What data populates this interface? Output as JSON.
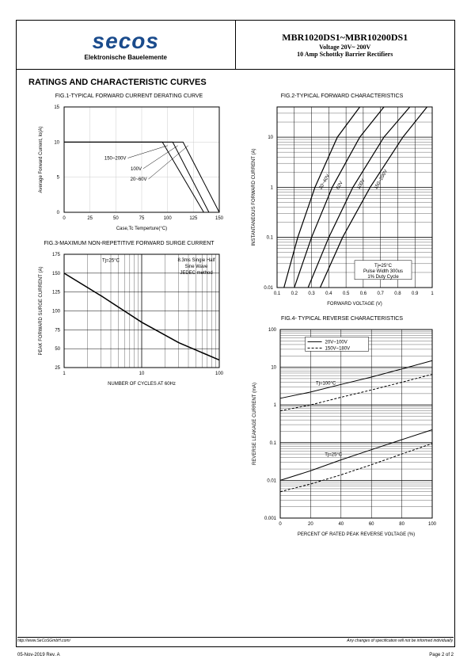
{
  "header": {
    "logo_text": "secos",
    "logo_subtitle": "Elektronische Bauelemente",
    "title_main": "MBR1020DS1~MBR10200DS1",
    "title_sub1": "Voltage 20V~ 200V",
    "title_sub2": "10 Amp Schottky Barrier Rectifiers"
  },
  "section_title": "RATINGS AND CHARACTERISTIC CURVES",
  "fig1": {
    "title": "FIG.1-TYPICAL FORWARD CURRENT DERATING CURVE",
    "xlabel": "Case,Tc Temperture(°C)",
    "ylabel": "Average Forward Current, Io(A)",
    "xlim": [
      0,
      150
    ],
    "ylim": [
      0,
      15
    ],
    "xticks": [
      0,
      25,
      50,
      75,
      100,
      125,
      150
    ],
    "yticks": [
      0,
      5,
      10,
      15
    ],
    "lines": [
      {
        "label": "150~200V",
        "label_pos": [
          60,
          7.5
        ],
        "points": [
          [
            0,
            10
          ],
          [
            95,
            10
          ],
          [
            135,
            0
          ]
        ]
      },
      {
        "label": "100V",
        "label_pos": [
          75,
          6
        ],
        "points": [
          [
            0,
            10
          ],
          [
            105,
            10
          ],
          [
            140,
            0
          ]
        ]
      },
      {
        "label": "20~60V",
        "label_pos": [
          80,
          4.5
        ],
        "points": [
          [
            0,
            10
          ],
          [
            115,
            10
          ],
          [
            150,
            0
          ]
        ]
      }
    ],
    "grid_color": "#cccccc",
    "line_color": "#000000",
    "border_color": "#000000"
  },
  "fig2": {
    "title": "FIG.2-TYPICAL FORWARD CHARACTERISTICS",
    "xlabel": "FORWARD VOLTAGE (V)",
    "ylabel": "INSTANTANEOUS FORWARD CURRENT (A)",
    "xlim": [
      0.1,
      1.0
    ],
    "ylim": [
      0.01,
      40
    ],
    "xticks": [
      0.1,
      0.2,
      0.3,
      0.4,
      0.5,
      0.6,
      0.7,
      0.8,
      0.9,
      1.0
    ],
    "yticks_log": [
      0.01,
      0.1,
      1,
      10
    ],
    "curves": [
      {
        "label": "20~40V",
        "points": [
          [
            0.14,
            0.01
          ],
          [
            0.22,
            0.1
          ],
          [
            0.32,
            1
          ],
          [
            0.45,
            10
          ],
          [
            0.58,
            40
          ]
        ]
      },
      {
        "label": "60V",
        "points": [
          [
            0.2,
            0.01
          ],
          [
            0.3,
            0.1
          ],
          [
            0.42,
            1
          ],
          [
            0.58,
            10
          ],
          [
            0.72,
            40
          ]
        ]
      },
      {
        "label": "100V",
        "points": [
          [
            0.28,
            0.01
          ],
          [
            0.4,
            0.1
          ],
          [
            0.54,
            1
          ],
          [
            0.72,
            10
          ],
          [
            0.87,
            40
          ]
        ]
      },
      {
        "label": "150~200V",
        "points": [
          [
            0.35,
            0.01
          ],
          [
            0.48,
            0.1
          ],
          [
            0.64,
            1
          ],
          [
            0.83,
            10
          ],
          [
            0.97,
            40
          ]
        ]
      }
    ],
    "annot_lines": [
      "Tj=25°C",
      "Pulse Width 300us",
      "1% Duty Cycle"
    ],
    "grid_color": "#000000",
    "line_color": "#000000"
  },
  "fig3": {
    "title": "FIG.3-MAXIMUM NON-REPETITIVE FORWARD SURGE CURRENT",
    "xlabel": "NUMBER OF CYCLES AT 60Hz",
    "ylabel": "PEAK FORWARD SURGE CURRENT (A)",
    "xlim_log": [
      1,
      100
    ],
    "ylim": [
      25,
      175
    ],
    "yticks": [
      25,
      50,
      75,
      100,
      125,
      150,
      175
    ],
    "line_points": [
      [
        1,
        150
      ],
      [
        3,
        120
      ],
      [
        10,
        85
      ],
      [
        30,
        58
      ],
      [
        100,
        35
      ]
    ],
    "annot_tj": "Tj=25°C",
    "annot_box": [
      "8.3ms Single Half",
      "Sine Wave",
      "JEDEC method"
    ],
    "grid_color": "#000000",
    "line_color": "#000000"
  },
  "fig4": {
    "title": "FIG.4- TYPICAL REVERSE CHARACTERISTICS",
    "xlabel": "PERCENT OF RATED PEAK REVERSE VOLTAGE (%)",
    "ylabel": "REVERSE LEAKAGE CURRENT (mA)",
    "xlim": [
      0,
      100
    ],
    "ylim_log": [
      0.001,
      100
    ],
    "xticks": [
      0,
      20,
      40,
      60,
      80,
      100
    ],
    "yticks_log": [
      0.001,
      0.01,
      0.1,
      1,
      10,
      100
    ],
    "legend": [
      {
        "style": "solid",
        "label": "20V~100V"
      },
      {
        "style": "dashed",
        "label": "150V~180V"
      }
    ],
    "annot_100": "Tj=100°C",
    "annot_25": "Tj=25°C",
    "curves": [
      {
        "style": "solid",
        "points": [
          [
            0,
            1.5
          ],
          [
            20,
            2.2
          ],
          [
            40,
            3.5
          ],
          [
            60,
            5.5
          ],
          [
            80,
            9
          ],
          [
            100,
            15
          ]
        ]
      },
      {
        "style": "dashed",
        "points": [
          [
            0,
            0.7
          ],
          [
            20,
            1.0
          ],
          [
            40,
            1.6
          ],
          [
            60,
            2.5
          ],
          [
            80,
            4
          ],
          [
            100,
            6.5
          ]
        ]
      },
      {
        "style": "solid",
        "points": [
          [
            0,
            0.01
          ],
          [
            20,
            0.018
          ],
          [
            40,
            0.035
          ],
          [
            60,
            0.065
          ],
          [
            80,
            0.12
          ],
          [
            100,
            0.22
          ]
        ]
      },
      {
        "style": "dashed",
        "points": [
          [
            0,
            0.005
          ],
          [
            20,
            0.008
          ],
          [
            40,
            0.014
          ],
          [
            60,
            0.026
          ],
          [
            80,
            0.05
          ],
          [
            100,
            0.095
          ]
        ]
      }
    ],
    "grid_color": "#000000",
    "line_color": "#000000"
  },
  "footer": {
    "url": "http://www.SeCoSGmbH.com/",
    "disclaimer": "Any changes of specification will not be informed individually.",
    "date_rev": "05-Nov-2019 Rev. A",
    "page": "Page 2 of 2"
  }
}
